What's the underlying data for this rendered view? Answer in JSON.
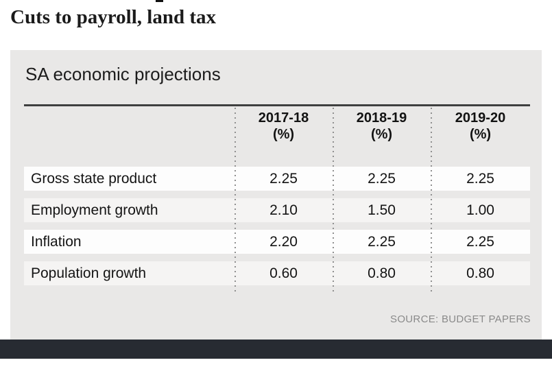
{
  "headline": {
    "text": "Cuts to payroll, land tax"
  },
  "panel": {
    "title": "SA economic projections",
    "source": "SOURCE: BUDGET PAPERS"
  },
  "table": {
    "columns": [
      {
        "year": "2017-18",
        "unit": "(%)"
      },
      {
        "year": "2018-19",
        "unit": "(%)"
      },
      {
        "year": "2019-20",
        "unit": "(%)"
      }
    ],
    "rows": [
      {
        "label": "Gross state product",
        "values": [
          "2.25",
          "2.25",
          "2.25"
        ]
      },
      {
        "label": "Employment growth",
        "values": [
          "2.10",
          "1.50",
          "1.00"
        ]
      },
      {
        "label": "Inflation",
        "values": [
          "2.20",
          "2.25",
          "2.25"
        ]
      },
      {
        "label": "Population growth",
        "values": [
          "0.60",
          "0.80",
          "0.80"
        ]
      }
    ]
  },
  "chart_data": {
    "type": "table",
    "title": "SA economic projections",
    "columns": [
      "2017-18 (%)",
      "2018-19 (%)",
      "2019-20 (%)"
    ],
    "rows": [
      {
        "label": "Gross state product",
        "values": [
          2.25,
          2.25,
          2.25
        ]
      },
      {
        "label": "Employment growth",
        "values": [
          2.1,
          1.5,
          1.0
        ]
      },
      {
        "label": "Inflation",
        "values": [
          2.2,
          2.25,
          2.25
        ]
      },
      {
        "label": "Population growth",
        "values": [
          0.6,
          0.8,
          0.8
        ]
      }
    ],
    "source": "SOURCE: BUDGET PAPERS"
  },
  "colors": {
    "panel_bg": "#e9e8e7",
    "row_bg": "#fdfdfd",
    "row_bg_alt": "#f5f4f3",
    "rule": "#3f3f3f",
    "dotted_divider": "#8f8f8f",
    "headline_text": "#1b1b1b",
    "source_text": "#8a8a8a",
    "footer_bar": "#272b32"
  }
}
